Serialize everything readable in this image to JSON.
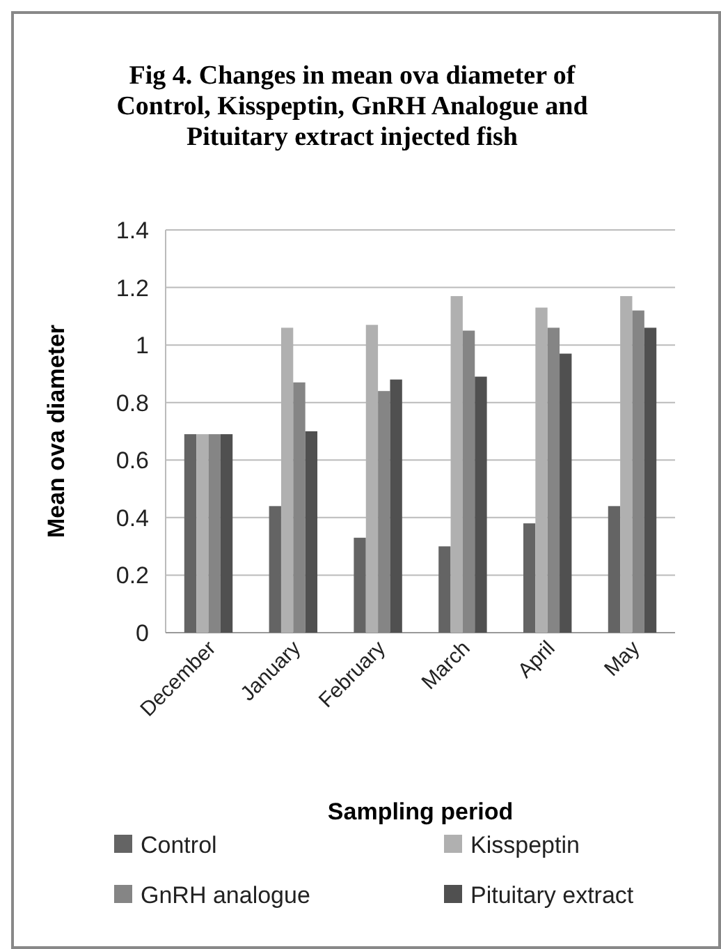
{
  "chart_data": {
    "type": "bar",
    "title": "Fig  4. Changes in mean ova diameter of Control, Kisspeptin, GnRH Analogue and Pituitary extract injected fish",
    "xlabel": "Sampling period",
    "ylabel": "Mean ova diameter",
    "categories": [
      "December",
      "January",
      "February",
      "March",
      "April",
      "May"
    ],
    "series": [
      {
        "name": "Control",
        "color": "#646464",
        "values": [
          0.69,
          0.44,
          0.33,
          0.3,
          0.38,
          0.44
        ]
      },
      {
        "name": "Kisspeptin",
        "color": "#b0b0b0",
        "values": [
          0.69,
          1.06,
          1.07,
          1.17,
          1.13,
          1.17
        ]
      },
      {
        "name": "GnRH analogue",
        "color": "#858585",
        "values": [
          0.69,
          0.87,
          0.84,
          1.05,
          1.06,
          1.12
        ]
      },
      {
        "name": "Pituitary extract",
        "color": "#505050",
        "values": [
          0.69,
          0.7,
          0.88,
          0.89,
          0.97,
          1.06
        ]
      }
    ],
    "ylim": [
      0,
      1.4
    ],
    "yticks": [
      0,
      0.2,
      0.4,
      0.6,
      0.8,
      1,
      1.2,
      1.4
    ],
    "grid": "y",
    "legend": "bottom"
  }
}
